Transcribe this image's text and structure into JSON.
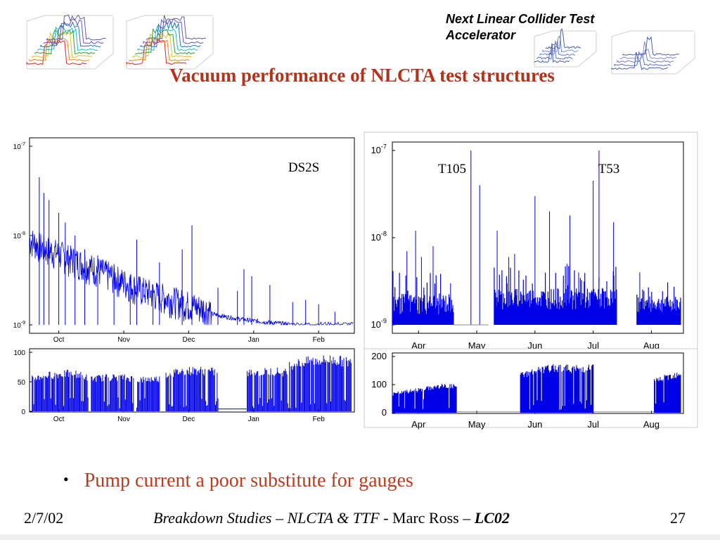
{
  "slide": {
    "header_note": "Next Linear Collider Test Accelerator",
    "title": "Vacuum performance of NLCTA test structures",
    "bullet": "Pump current a poor substitute for gauges",
    "footer": {
      "date": "2/7/02",
      "center_part1": "Breakdown Studies – NLCTA & TTF",
      "center_part2": " - Marc Ross – ",
      "center_part3": "LC02",
      "page": "27"
    }
  },
  "colors": {
    "title": "#b5321a",
    "bullet": "#c0391b",
    "trace": "#0000e6",
    "deco_plots": "multicolor-3d-waterfall"
  },
  "chart_data": [
    {
      "id": "ds2s-pressure",
      "type": "line",
      "scale": "log",
      "annotations": [
        "DS2S"
      ],
      "categories": [
        "Oct",
        "Nov",
        "Dec",
        "Jan",
        "Feb"
      ],
      "y_ticks": [
        {
          "base": "10",
          "exp": "-7"
        },
        {
          "base": "10",
          "exp": "-8"
        },
        {
          "base": "10",
          "exp": "-9"
        }
      ],
      "ylim": [
        1e-09,
        1e-07
      ],
      "points": [
        [
          0.0,
          8.0
        ],
        [
          0.2,
          6.5
        ],
        [
          0.4,
          5.8
        ],
        [
          0.6,
          5.0
        ],
        [
          0.8,
          4.4
        ],
        [
          1.0,
          3.8
        ],
        [
          1.2,
          3.3
        ],
        [
          1.4,
          2.8
        ],
        [
          1.6,
          2.4
        ],
        [
          1.8,
          2.1
        ],
        [
          2.0,
          1.9
        ],
        [
          2.2,
          1.7
        ],
        [
          2.4,
          1.55
        ],
        [
          2.6,
          1.4
        ],
        [
          2.8,
          1.3
        ],
        [
          3.0,
          1.22
        ],
        [
          3.2,
          1.15
        ],
        [
          3.4,
          1.1
        ],
        [
          3.6,
          1.06
        ],
        [
          3.8,
          1.03
        ],
        [
          4.0,
          1.0
        ],
        [
          4.5,
          1.0
        ],
        [
          5.0,
          1.0
        ]
      ],
      "spikes": [
        [
          0.15,
          45
        ],
        [
          0.22,
          30
        ],
        [
          0.3,
          25
        ],
        [
          0.45,
          18
        ],
        [
          0.55,
          14
        ],
        [
          0.7,
          10
        ],
        [
          0.85,
          7
        ],
        [
          1.05,
          6
        ],
        [
          1.3,
          4.5
        ],
        [
          1.55,
          3.6
        ],
        [
          1.65,
          9
        ],
        [
          1.9,
          2.8
        ],
        [
          2.0,
          5
        ],
        [
          2.35,
          7
        ],
        [
          2.5,
          13
        ],
        [
          2.9,
          2.6
        ],
        [
          3.2,
          2.4
        ],
        [
          3.3,
          4.2
        ],
        [
          3.42,
          3.5
        ],
        [
          3.7,
          2.8
        ],
        [
          4.05,
          1.8
        ],
        [
          4.25,
          1.9
        ],
        [
          4.45,
          1.7
        ],
        [
          4.7,
          1.4
        ]
      ]
    },
    {
      "id": "ds2s-pump-current",
      "type": "area",
      "categories": [
        "Oct",
        "Nov",
        "Dec",
        "Jan",
        "Feb"
      ],
      "y_ticks": [
        "0",
        "50",
        "100"
      ],
      "ylim": [
        0,
        100
      ],
      "segments": [
        {
          "x0": 0.04,
          "x1": 0.9,
          "values": [
            60,
            66,
            68,
            70,
            62
          ]
        },
        {
          "x0": 0.95,
          "x1": 1.6,
          "values": [
            60,
            62,
            63,
            60
          ]
        },
        {
          "x0": 1.65,
          "x1": 2.0,
          "values": [
            58,
            60
          ]
        },
        {
          "x0": 2.1,
          "x1": 2.9,
          "values": [
            68,
            74,
            75,
            72
          ]
        },
        {
          "x0": 3.35,
          "x1": 4.0,
          "values": [
            70,
            72,
            74,
            70
          ]
        },
        {
          "x0": 4.0,
          "x1": 4.95,
          "values": [
            85,
            92,
            95,
            90
          ]
        }
      ],
      "gaps": [
        [
          2.9,
          3.35,
          4
        ]
      ]
    },
    {
      "id": "t105-t53-pressure",
      "type": "line",
      "scale": "log",
      "annotations": [
        "T105",
        "T53"
      ],
      "categories": [
        "Apr",
        "May",
        "Jun",
        "Jul",
        "Aug"
      ],
      "y_ticks": [
        {
          "base": "10",
          "exp": "-7"
        },
        {
          "base": "10",
          "exp": "-8"
        },
        {
          "base": "10",
          "exp": "-9"
        }
      ],
      "ylim": [
        1e-09,
        1e-07
      ],
      "segments": [
        {
          "x0": 0.0,
          "x1": 1.05,
          "base": 1.3,
          "peak": 3.5
        },
        {
          "x0": 1.75,
          "x1": 3.85,
          "base": 1.5,
          "peak": 4.0
        },
        {
          "x0": 4.2,
          "x1": 4.95,
          "base": 1.4,
          "peak": 3.0
        }
      ],
      "spikes": [
        [
          0.25,
          7
        ],
        [
          0.4,
          12
        ],
        [
          0.5,
          6
        ],
        [
          0.7,
          8
        ],
        [
          1.0,
          3
        ],
        [
          1.35,
          100
        ],
        [
          1.5,
          40
        ],
        [
          1.8,
          12
        ],
        [
          2.0,
          6
        ],
        [
          2.1,
          6.5
        ],
        [
          2.45,
          30
        ],
        [
          2.7,
          20
        ],
        [
          3.0,
          5
        ],
        [
          3.05,
          18
        ],
        [
          3.2,
          4
        ],
        [
          3.45,
          45
        ],
        [
          3.55,
          100
        ],
        [
          3.8,
          15
        ],
        [
          4.25,
          4
        ]
      ],
      "flat": [
        [
          1.05,
          1.65,
          1.0
        ]
      ]
    },
    {
      "id": "t105-t53-pump-current",
      "type": "area",
      "categories": [
        "Apr",
        "May",
        "Jun",
        "Jul",
        "Aug"
      ],
      "y_ticks": [
        "0",
        "100",
        "200"
      ],
      "ylim": [
        0,
        200
      ],
      "segments": [
        {
          "x0": 0.0,
          "x1": 1.1,
          "values": [
            70,
            80,
            90,
            100,
            100
          ]
        },
        {
          "x0": 2.2,
          "x1": 3.45,
          "values": [
            140,
            160,
            170,
            165,
            170
          ]
        },
        {
          "x0": 4.5,
          "x1": 4.95,
          "values": [
            120,
            150
          ]
        }
      ]
    }
  ]
}
